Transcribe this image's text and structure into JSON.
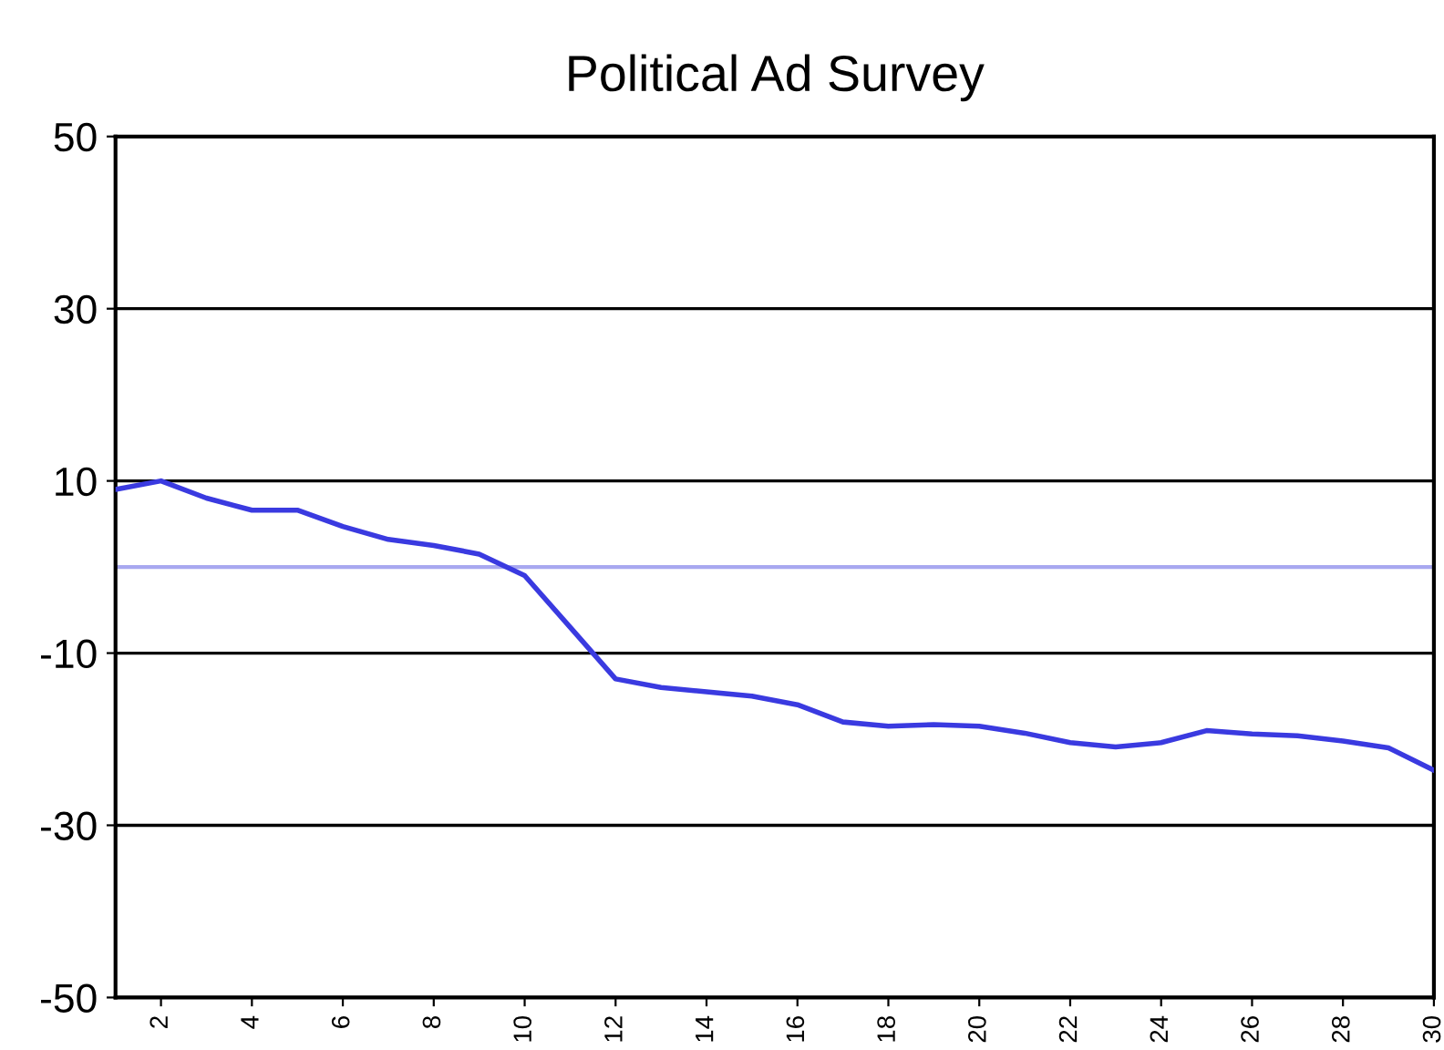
{
  "chart_data": {
    "type": "line",
    "title": "Political Ad Survey",
    "x": [
      1,
      2,
      3,
      4,
      5,
      6,
      7,
      8,
      9,
      10,
      11,
      12,
      13,
      14,
      15,
      16,
      17,
      18,
      19,
      20,
      21,
      22,
      23,
      24,
      25,
      26,
      27,
      28,
      29,
      30
    ],
    "series": [
      {
        "color": "#3a3ae0",
        "values": [
          9,
          10,
          8,
          6.6,
          6.6,
          4.7,
          3.2,
          2.5,
          1.5,
          -1,
          -7,
          -13,
          -14,
          -14.5,
          -15,
          -16,
          -18,
          -18.5,
          -18.3,
          -18.5,
          -19.3,
          -20.4,
          -20.9,
          -20.4,
          -19,
          -19.4,
          -19.6,
          -20.2,
          -21,
          -23.6
        ]
      }
    ],
    "xlim": [
      1,
      30
    ],
    "xticks": [
      2,
      4,
      6,
      8,
      10,
      12,
      14,
      16,
      18,
      20,
      22,
      24,
      26,
      28,
      30
    ],
    "ylim": [
      -50,
      50
    ],
    "yticks": [
      -50,
      -30,
      -10,
      10,
      30,
      50
    ],
    "grid": "y",
    "ref_lines": [
      {
        "axis": "y",
        "value": 0,
        "color": "#a8a8f0"
      }
    ]
  }
}
